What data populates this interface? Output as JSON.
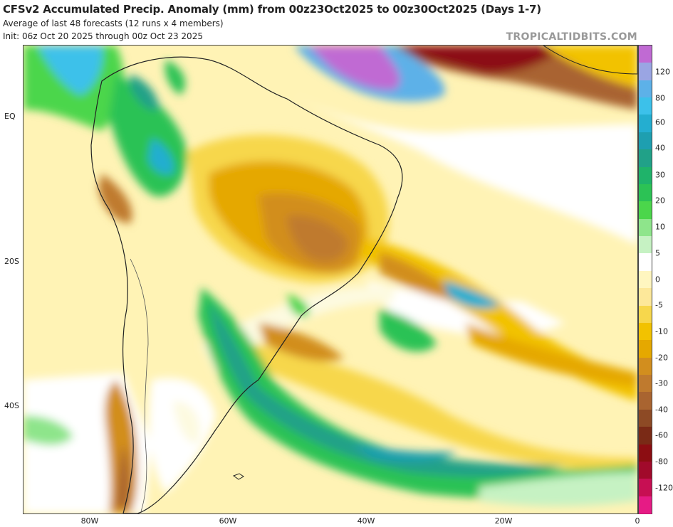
{
  "header": {
    "title": "CFSv2 Accumulated Precip. Anomaly (mm) from 00z23Oct2025 to 00z30Oct2025 (Days 1-7)",
    "subtitle_1": "Average of last 48 forecasts (12 runs x 4 members)",
    "subtitle_2": "Init: 06z Oct 20 2025 through 00z Oct 23 2025",
    "brand": "TROPICALTIDBITS.COM"
  },
  "map": {
    "region": "South America and South Atlantic",
    "lat_labels": [
      "EQ",
      "20S",
      "40S"
    ],
    "lon_labels": [
      "80W",
      "60W",
      "40W",
      "20W",
      "0"
    ]
  },
  "colorbar": {
    "labels": [
      "120",
      "80",
      "60",
      "40",
      "30",
      "20",
      "10",
      "5",
      "0",
      "-5",
      "-10",
      "-20",
      "-30",
      "-40",
      "-60",
      "-80",
      "-120"
    ],
    "colors": [
      "#c06ad3",
      "#9aa5e3",
      "#5db1e8",
      "#3cc1ea",
      "#24aed0",
      "#1e9fb0",
      "#21a188",
      "#1fb36a",
      "#2cc255",
      "#4bd64b",
      "#8ee58b",
      "#c6f2c3",
      "#ffffff",
      "#fff6c0",
      "#fde89a",
      "#f7d74c",
      "#f2c200",
      "#e5a800",
      "#d28e1e",
      "#bf7a2e",
      "#a96430",
      "#8d4a25",
      "#7a2a16",
      "#8c0d12",
      "#a10a2b",
      "#c70f53",
      "#e61b85"
    ]
  }
}
